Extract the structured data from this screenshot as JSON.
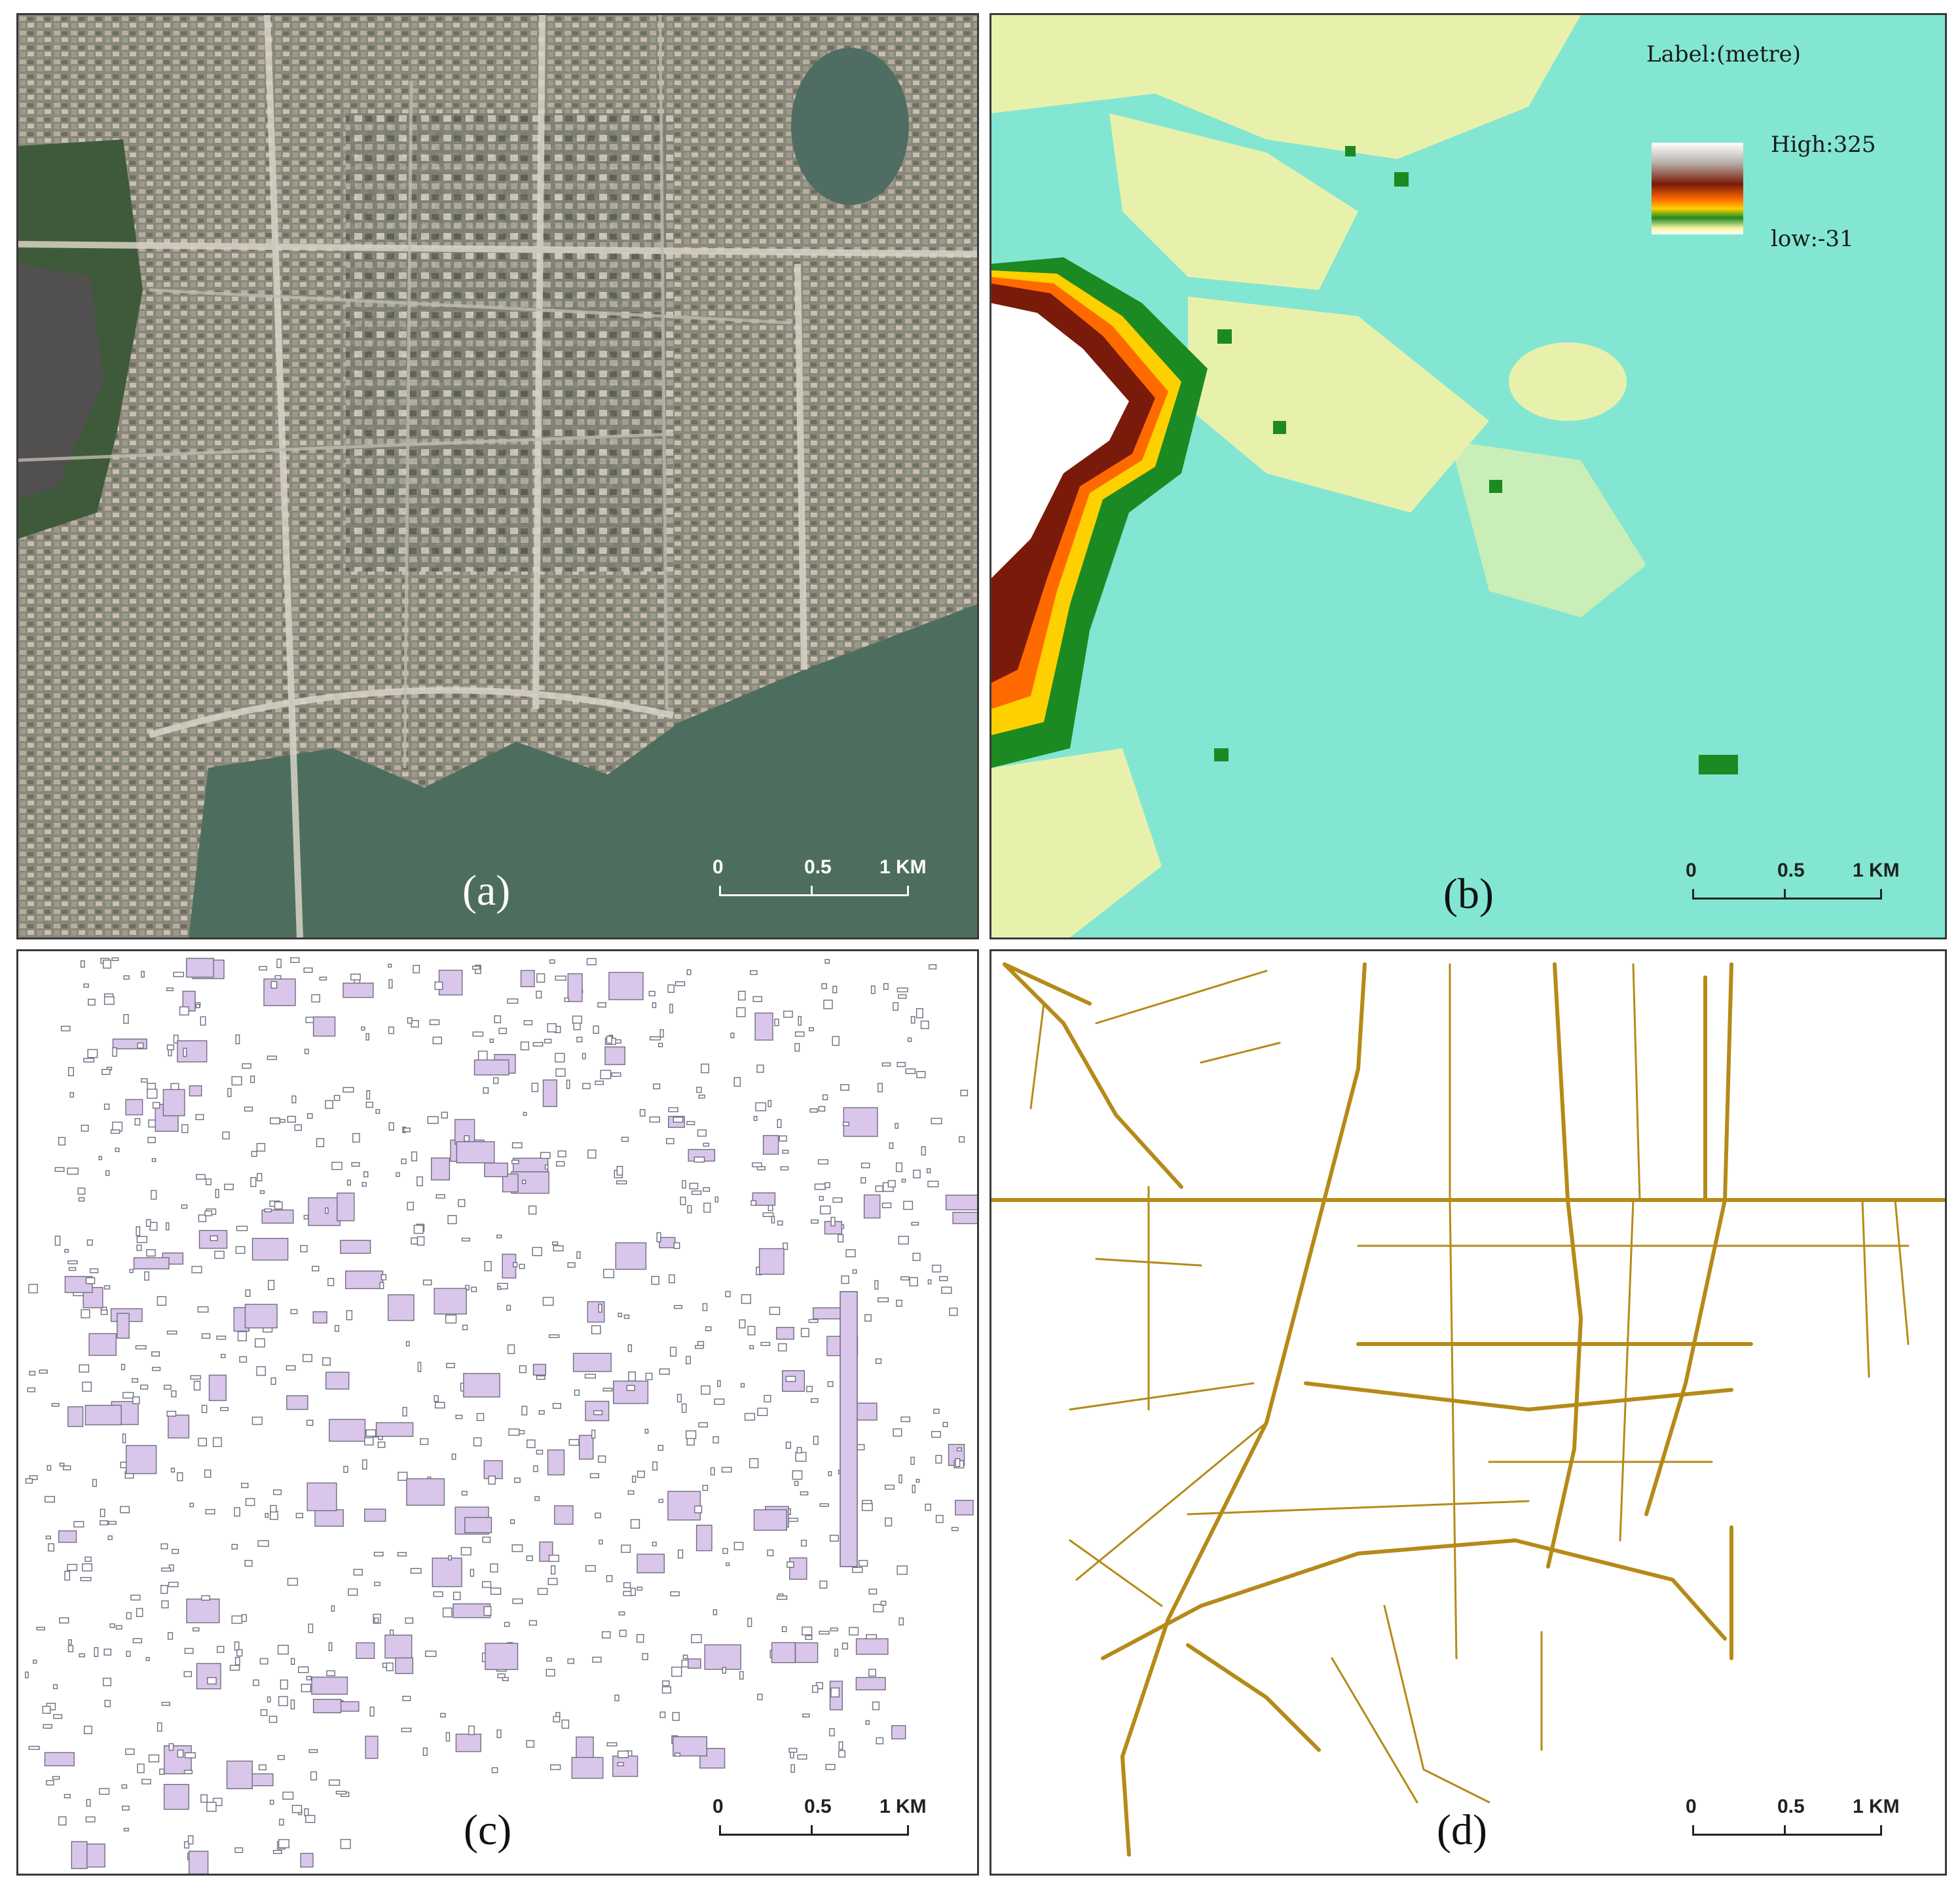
{
  "panels": {
    "a": {
      "label": "(a)",
      "content": "satellite imagery"
    },
    "b": {
      "label": "(b)",
      "content": "elevation raster",
      "legend": {
        "title": "Label:(metre)",
        "high_label": "High:325",
        "low_label": "low:-31",
        "high_value": 325,
        "low_value": -31
      },
      "colors": [
        "#ffffff",
        "#7a1a0a",
        "#ff6a00",
        "#ffd000",
        "#1c8a22",
        "#f6f3a0",
        "#82e6d2"
      ]
    },
    "c": {
      "label": "(c)",
      "content": "building footprints",
      "fill_color": "#d9c6ea",
      "stroke_color": "#6e6e80"
    },
    "d": {
      "label": "(d)",
      "content": "road network",
      "line_color": "#b58a18"
    }
  },
  "scale_bar": {
    "ticks": [
      "0",
      "0.5",
      "1 KM"
    ]
  }
}
